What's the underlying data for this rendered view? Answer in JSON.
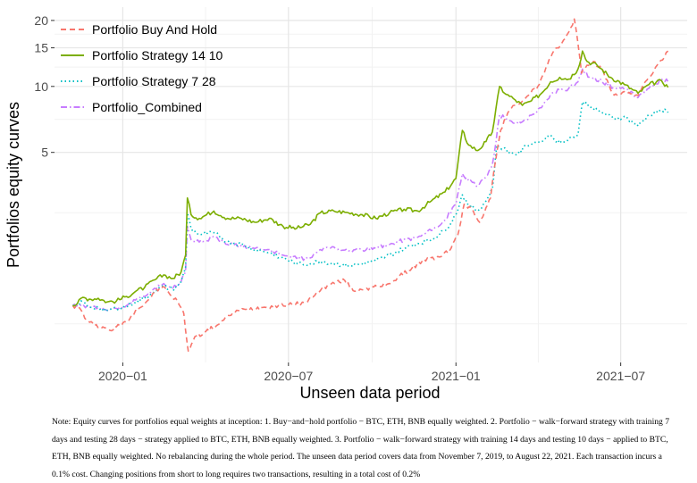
{
  "chart_data": {
    "type": "line",
    "title": "",
    "xlabel": "Unseen data period",
    "ylabel": "Portfolios equity curves",
    "yscale": "log",
    "ylim": [
      0.55,
      23
    ],
    "y_ticks": [
      5,
      10,
      15,
      20
    ],
    "y_tick_labels": [
      "5",
      "10",
      "15",
      "20"
    ],
    "x_ticks": [
      "2020-01-01",
      "2020-07-01",
      "2021-01-01",
      "2021-07-01"
    ],
    "x_tick_labels": [
      "2020−01",
      "2020−07",
      "2021−01",
      "2021−07"
    ],
    "x_range": [
      "2019-10-18",
      "2021-09-12"
    ],
    "grid": true,
    "legend_position": "top-left",
    "series": [
      {
        "name": "Portfolio Buy And Hold",
        "color": "#F8766D",
        "dash": "dashed",
        "points": [
          [
            "2019-11-07",
            1.0
          ],
          [
            "2019-11-15",
            0.97
          ],
          [
            "2019-11-22",
            0.86
          ],
          [
            "2019-12-01",
            0.81
          ],
          [
            "2019-12-10",
            0.8
          ],
          [
            "2019-12-18",
            0.77
          ],
          [
            "2019-12-25",
            0.8
          ],
          [
            "2020-01-05",
            0.84
          ],
          [
            "2020-01-15",
            0.95
          ],
          [
            "2020-01-25",
            1.02
          ],
          [
            "2020-02-05",
            1.15
          ],
          [
            "2020-02-14",
            1.22
          ],
          [
            "2020-02-22",
            1.12
          ],
          [
            "2020-03-01",
            1.05
          ],
          [
            "2020-03-08",
            0.92
          ],
          [
            "2020-03-12",
            0.66
          ],
          [
            "2020-03-13",
            0.62
          ],
          [
            "2020-03-20",
            0.72
          ],
          [
            "2020-04-01",
            0.76
          ],
          [
            "2020-04-15",
            0.82
          ],
          [
            "2020-05-01",
            0.93
          ],
          [
            "2020-05-15",
            0.96
          ],
          [
            "2020-06-01",
            0.98
          ],
          [
            "2020-06-20",
            1.0
          ],
          [
            "2020-07-05",
            1.01
          ],
          [
            "2020-07-20",
            1.03
          ],
          [
            "2020-08-01",
            1.15
          ],
          [
            "2020-08-15",
            1.25
          ],
          [
            "2020-09-01",
            1.3
          ],
          [
            "2020-09-10",
            1.17
          ],
          [
            "2020-09-25",
            1.2
          ],
          [
            "2020-10-10",
            1.22
          ],
          [
            "2020-10-25",
            1.3
          ],
          [
            "2020-11-10",
            1.45
          ],
          [
            "2020-11-25",
            1.6
          ],
          [
            "2020-12-10",
            1.65
          ],
          [
            "2020-12-25",
            1.78
          ],
          [
            "2021-01-03",
            2.1
          ],
          [
            "2021-01-10",
            2.9
          ],
          [
            "2021-01-20",
            2.7
          ],
          [
            "2021-01-27",
            2.4
          ],
          [
            "2021-02-03",
            2.8
          ],
          [
            "2021-02-08",
            3.1
          ],
          [
            "2021-02-12",
            4.2
          ],
          [
            "2021-02-19",
            6.3
          ],
          [
            "2021-02-23",
            7.0
          ],
          [
            "2021-03-01",
            7.8
          ],
          [
            "2021-03-10",
            8.3
          ],
          [
            "2021-03-20",
            9.0
          ],
          [
            "2021-04-01",
            10.0
          ],
          [
            "2021-04-08",
            11.5
          ],
          [
            "2021-04-15",
            13.5
          ],
          [
            "2021-04-22",
            15.0
          ],
          [
            "2021-05-01",
            16.5
          ],
          [
            "2021-05-07",
            18.5
          ],
          [
            "2021-05-11",
            20.3
          ],
          [
            "2021-05-14",
            17.0
          ],
          [
            "2021-05-19",
            11.5
          ],
          [
            "2021-05-25",
            12.5
          ],
          [
            "2021-06-01",
            13.0
          ],
          [
            "2021-06-10",
            12.0
          ],
          [
            "2021-06-22",
            9.3
          ],
          [
            "2021-07-01",
            9.2
          ],
          [
            "2021-07-10",
            9.4
          ],
          [
            "2021-07-20",
            9.1
          ],
          [
            "2021-08-01",
            11.0
          ],
          [
            "2021-08-10",
            12.5
          ],
          [
            "2021-08-16",
            13.2
          ],
          [
            "2021-08-22",
            14.5
          ]
        ]
      },
      {
        "name": "Portfolio Strategy 14 10",
        "color": "#7CAE00",
        "dash": "solid",
        "points": [
          [
            "2019-11-07",
            1.0
          ],
          [
            "2019-11-12",
            1.02
          ],
          [
            "2019-11-18",
            1.09
          ],
          [
            "2019-11-25",
            1.07
          ],
          [
            "2019-12-05",
            1.08
          ],
          [
            "2019-12-15",
            1.04
          ],
          [
            "2019-12-25",
            1.05
          ],
          [
            "2020-01-05",
            1.1
          ],
          [
            "2020-01-15",
            1.16
          ],
          [
            "2020-01-25",
            1.21
          ],
          [
            "2020-02-05",
            1.31
          ],
          [
            "2020-02-15",
            1.38
          ],
          [
            "2020-02-25",
            1.33
          ],
          [
            "2020-03-05",
            1.42
          ],
          [
            "2020-03-10",
            1.7
          ],
          [
            "2020-03-12",
            3.1
          ],
          [
            "2020-03-16",
            2.6
          ],
          [
            "2020-03-25",
            2.5
          ],
          [
            "2020-04-10",
            2.7
          ],
          [
            "2020-04-25",
            2.5
          ],
          [
            "2020-05-10",
            2.5
          ],
          [
            "2020-05-25",
            2.4
          ],
          [
            "2020-06-10",
            2.5
          ],
          [
            "2020-06-25",
            2.3
          ],
          [
            "2020-07-10",
            2.25
          ],
          [
            "2020-07-25",
            2.35
          ],
          [
            "2020-08-05",
            2.65
          ],
          [
            "2020-08-20",
            2.7
          ],
          [
            "2020-09-05",
            2.65
          ],
          [
            "2020-09-20",
            2.6
          ],
          [
            "2020-10-05",
            2.5
          ],
          [
            "2020-10-20",
            2.65
          ],
          [
            "2020-11-05",
            2.75
          ],
          [
            "2020-11-20",
            2.7
          ],
          [
            "2020-12-05",
            3.0
          ],
          [
            "2020-12-20",
            3.3
          ],
          [
            "2021-01-01",
            3.8
          ],
          [
            "2021-01-08",
            6.3
          ],
          [
            "2021-01-15",
            5.4
          ],
          [
            "2021-01-25",
            5.1
          ],
          [
            "2021-02-03",
            5.6
          ],
          [
            "2021-02-10",
            6.2
          ],
          [
            "2021-02-18",
            10.0
          ],
          [
            "2021-02-25",
            9.2
          ],
          [
            "2021-03-05",
            8.8
          ],
          [
            "2021-03-15",
            8.2
          ],
          [
            "2021-03-25",
            8.6
          ],
          [
            "2021-04-05",
            9.3
          ],
          [
            "2021-04-15",
            10.5
          ],
          [
            "2021-04-25",
            11.0
          ],
          [
            "2021-05-05",
            10.8
          ],
          [
            "2021-05-15",
            12.0
          ],
          [
            "2021-05-20",
            14.5
          ],
          [
            "2021-05-25",
            13.0
          ],
          [
            "2021-06-05",
            12.5
          ],
          [
            "2021-06-20",
            11.0
          ],
          [
            "2021-07-05",
            10.2
          ],
          [
            "2021-07-20",
            9.3
          ],
          [
            "2021-08-01",
            10.2
          ],
          [
            "2021-08-15",
            10.6
          ],
          [
            "2021-08-22",
            9.9
          ]
        ]
      },
      {
        "name": "Portfolio Strategy 7 28",
        "color": "#00BFC4",
        "dash": "dotted",
        "points": [
          [
            "2019-11-07",
            1.0
          ],
          [
            "2019-11-12",
            1.01
          ],
          [
            "2019-11-18",
            1.04
          ],
          [
            "2019-11-25",
            0.99
          ],
          [
            "2019-12-05",
            0.98
          ],
          [
            "2019-12-15",
            0.95
          ],
          [
            "2019-12-25",
            0.97
          ],
          [
            "2020-01-05",
            0.99
          ],
          [
            "2020-01-15",
            1.04
          ],
          [
            "2020-01-25",
            1.08
          ],
          [
            "2020-02-05",
            1.17
          ],
          [
            "2020-02-15",
            1.22
          ],
          [
            "2020-02-25",
            1.18
          ],
          [
            "2020-03-05",
            1.28
          ],
          [
            "2020-03-10",
            1.5
          ],
          [
            "2020-03-12",
            2.65
          ],
          [
            "2020-03-16",
            2.25
          ],
          [
            "2020-03-25",
            2.1
          ],
          [
            "2020-04-10",
            2.15
          ],
          [
            "2020-04-25",
            1.95
          ],
          [
            "2020-05-10",
            1.9
          ],
          [
            "2020-05-25",
            1.8
          ],
          [
            "2020-06-10",
            1.75
          ],
          [
            "2020-06-25",
            1.65
          ],
          [
            "2020-07-10",
            1.55
          ],
          [
            "2020-07-25",
            1.55
          ],
          [
            "2020-08-05",
            1.6
          ],
          [
            "2020-08-20",
            1.55
          ],
          [
            "2020-09-05",
            1.52
          ],
          [
            "2020-09-20",
            1.55
          ],
          [
            "2020-10-05",
            1.6
          ],
          [
            "2020-10-20",
            1.7
          ],
          [
            "2020-11-05",
            1.82
          ],
          [
            "2020-11-20",
            1.92
          ],
          [
            "2020-12-05",
            2.0
          ],
          [
            "2020-12-20",
            2.2
          ],
          [
            "2021-01-01",
            2.6
          ],
          [
            "2021-01-08",
            3.2
          ],
          [
            "2021-01-15",
            2.9
          ],
          [
            "2021-01-25",
            2.7
          ],
          [
            "2021-02-03",
            3.0
          ],
          [
            "2021-02-10",
            3.4
          ],
          [
            "2021-02-15",
            5.4
          ],
          [
            "2021-02-22",
            5.2
          ],
          [
            "2021-03-01",
            5.0
          ],
          [
            "2021-03-10",
            4.9
          ],
          [
            "2021-03-20",
            5.4
          ],
          [
            "2021-04-01",
            5.6
          ],
          [
            "2021-04-15",
            6.0
          ],
          [
            "2021-04-25",
            5.5
          ],
          [
            "2021-05-05",
            5.8
          ],
          [
            "2021-05-15",
            6.0
          ],
          [
            "2021-05-20",
            8.5
          ],
          [
            "2021-05-28",
            8.2
          ],
          [
            "2021-06-10",
            7.6
          ],
          [
            "2021-06-25",
            7.1
          ],
          [
            "2021-07-05",
            7.3
          ],
          [
            "2021-07-20",
            6.6
          ],
          [
            "2021-08-01",
            7.4
          ],
          [
            "2021-08-15",
            7.8
          ],
          [
            "2021-08-22",
            7.6
          ]
        ]
      },
      {
        "name": "Portfolio_Combined",
        "color": "#C77CFF",
        "dash": "dashdot",
        "points": [
          [
            "2019-11-07",
            1.0
          ],
          [
            "2019-11-15",
            1.01
          ],
          [
            "2019-11-25",
            0.99
          ],
          [
            "2019-12-05",
            0.98
          ],
          [
            "2019-12-15",
            0.95
          ],
          [
            "2019-12-25",
            0.97
          ],
          [
            "2020-01-05",
            1.0
          ],
          [
            "2020-01-15",
            1.06
          ],
          [
            "2020-01-25",
            1.1
          ],
          [
            "2020-02-05",
            1.2
          ],
          [
            "2020-02-15",
            1.26
          ],
          [
            "2020-02-25",
            1.2
          ],
          [
            "2020-03-05",
            1.28
          ],
          [
            "2020-03-10",
            1.45
          ],
          [
            "2020-03-12",
            2.3
          ],
          [
            "2020-03-16",
            2.0
          ],
          [
            "2020-03-25",
            1.95
          ],
          [
            "2020-04-10",
            2.05
          ],
          [
            "2020-04-25",
            1.9
          ],
          [
            "2020-05-10",
            1.88
          ],
          [
            "2020-05-25",
            1.82
          ],
          [
            "2020-06-10",
            1.8
          ],
          [
            "2020-06-25",
            1.7
          ],
          [
            "2020-07-10",
            1.64
          ],
          [
            "2020-07-25",
            1.65
          ],
          [
            "2020-08-05",
            1.8
          ],
          [
            "2020-08-20",
            1.85
          ],
          [
            "2020-09-05",
            1.78
          ],
          [
            "2020-09-20",
            1.8
          ],
          [
            "2020-10-05",
            1.82
          ],
          [
            "2020-10-20",
            1.9
          ],
          [
            "2020-11-05",
            2.0
          ],
          [
            "2020-11-20",
            2.05
          ],
          [
            "2020-12-05",
            2.2
          ],
          [
            "2020-12-20",
            2.45
          ],
          [
            "2021-01-01",
            2.9
          ],
          [
            "2021-01-08",
            4.0
          ],
          [
            "2021-01-15",
            3.7
          ],
          [
            "2021-01-25",
            3.5
          ],
          [
            "2021-02-03",
            3.9
          ],
          [
            "2021-02-10",
            4.4
          ],
          [
            "2021-02-18",
            7.4
          ],
          [
            "2021-02-25",
            7.1
          ],
          [
            "2021-03-05",
            6.8
          ],
          [
            "2021-03-15",
            6.9
          ],
          [
            "2021-03-25",
            7.4
          ],
          [
            "2021-04-05",
            8.0
          ],
          [
            "2021-04-15",
            9.2
          ],
          [
            "2021-04-25",
            9.6
          ],
          [
            "2021-05-05",
            9.8
          ],
          [
            "2021-05-15",
            10.5
          ],
          [
            "2021-05-20",
            12.0
          ],
          [
            "2021-05-28",
            11.0
          ],
          [
            "2021-06-10",
            10.6
          ],
          [
            "2021-06-25",
            9.8
          ],
          [
            "2021-07-05",
            9.7
          ],
          [
            "2021-07-20",
            8.9
          ],
          [
            "2021-08-01",
            9.8
          ],
          [
            "2021-08-15",
            10.8
          ],
          [
            "2021-08-22",
            10.5
          ]
        ]
      }
    ]
  },
  "note": "Note: Equity curves for portfolios equal weights at inception: 1. Buy−and−hold portfolio − BTC, ETH, BNB equally weighted. 2. Portfolio − walk−forward strategy with training 7 days and testing 28 days − strategy applied to BTC, ETH, BNB equally weighted. 3. Portfolio − walk−forward strategy with training 14 days and testing 10 days − applied to BTC, ETH, BNB equally weighted. No rebalancing during the whole period. The unseen data period covers data from November 7, 2019, to August 22, 2021. Each transaction incurs a 0.1% cost. Changing positions from short to long requires two transactions, resulting in a total cost of 0.2%"
}
